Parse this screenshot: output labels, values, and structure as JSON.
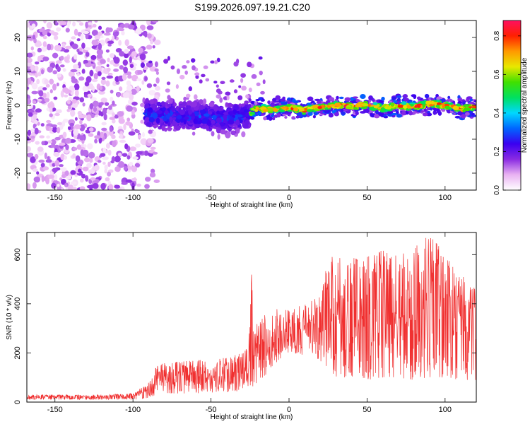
{
  "title": "S199.2026.097.19.21.C20",
  "chart_data": [
    {
      "name": "spectrogram",
      "type": "heatmap",
      "title": "S199.2026.097.19.21.C20",
      "xlabel": "Height of straight line (km)",
      "ylabel": "Frequency (Hz)",
      "xlim": [
        -168,
        120
      ],
      "ylim": [
        -25,
        25
      ],
      "xticks": [
        -150,
        -100,
        -50,
        0,
        50,
        100
      ],
      "yticks": [
        -20,
        -10,
        0,
        10,
        20
      ],
      "xtick_labels": [
        "-150",
        "-100",
        "-50",
        "0",
        "50",
        "100"
      ],
      "ytick_labels": [
        "-20",
        "-10",
        "0",
        "10",
        "20"
      ],
      "colorbar": {
        "label": "Normalized spectral amplitude",
        "range": [
          0,
          0.88
        ],
        "ticks": [
          0.0,
          0.2,
          0.4,
          0.6,
          0.8
        ],
        "tick_labels": [
          "0.0",
          "0.2",
          "0.4",
          "0.6",
          "0.8"
        ],
        "colors": [
          "#ffffff",
          "#e9b2f2",
          "#8a2be2",
          "#3a00f0",
          "#0066ff",
          "#00d8ff",
          "#00e060",
          "#40e000",
          "#e8e800",
          "#ff9900",
          "#ff2000",
          "#ff1060"
        ]
      },
      "regions": [
        {
          "x_range": [
            -168,
            -92
          ],
          "frequency_spread": [
            -25,
            25
          ],
          "amplitude": [
            0.02,
            0.16
          ],
          "description_text": ""
        },
        {
          "x_range": [
            -92,
            -25
          ],
          "center_frequency": -3,
          "half_width": 6,
          "amplitude": [
            0.1,
            0.32
          ]
        },
        {
          "x_range": [
            -25,
            120
          ],
          "center_frequency": -0.8,
          "half_width": 2.5,
          "amplitude": [
            0.3,
            0.88
          ]
        }
      ],
      "ridge": {
        "x": [
          -92,
          -80,
          -70,
          -60,
          -50,
          -40,
          -30,
          -25,
          -20,
          -10,
          0,
          10,
          20,
          30,
          40,
          50,
          60,
          70,
          80,
          90,
          100,
          110,
          120
        ],
        "frequency": [
          -2.5,
          -2.8,
          -3,
          -3.2,
          -3.5,
          -3.8,
          -3.5,
          -2,
          -1,
          -1.2,
          -0.8,
          -1.5,
          -0.5,
          0,
          -0.3,
          0,
          -0.8,
          -0.2,
          -0.5,
          0.5,
          0,
          -1,
          -0.5
        ]
      }
    },
    {
      "name": "snr-plot",
      "type": "line",
      "xlabel": "Height of straight line (km)",
      "ylabel": "SNR (10 * v/v)",
      "xlim": [
        -168,
        120
      ],
      "ylim": [
        0,
        690
      ],
      "xticks": [
        -150,
        -100,
        -50,
        0,
        50,
        100
      ],
      "yticks": [
        0,
        200,
        400,
        600
      ],
      "xtick_labels": [
        "-150",
        "-100",
        "-50",
        "0",
        "50",
        "100"
      ],
      "ytick_labels": [
        "0",
        "200",
        "400",
        "600"
      ],
      "series": [
        {
          "name": "SNR",
          "color": "#f03030",
          "envelope": {
            "x": [
              -168,
              -120,
              -100,
              -95,
              -90,
              -85,
              -80,
              -60,
              -40,
              -30,
              -26,
              -24,
              -22,
              -20,
              -15,
              -10,
              -5,
              0,
              10,
              20,
              25,
              30,
              40,
              50,
              60,
              70,
              80,
              90,
              100,
              110,
              120
            ],
            "low": [
              10,
              10,
              10,
              12,
              18,
              30,
              35,
              35,
              40,
              45,
              50,
              60,
              70,
              80,
              110,
              150,
              180,
              200,
              190,
              170,
              120,
              100,
              100,
              90,
              100,
              100,
              90,
              100,
              100,
              90,
              90
            ],
            "high": [
              30,
              30,
              35,
              60,
              80,
              150,
              160,
              170,
              180,
              200,
              240,
              520,
              300,
              330,
              360,
              370,
              390,
              390,
              400,
              430,
              580,
              600,
              600,
              590,
              620,
              600,
              630,
              680,
              610,
              520,
              460
            ]
          },
          "typical_max": 690
        }
      ]
    }
  ]
}
